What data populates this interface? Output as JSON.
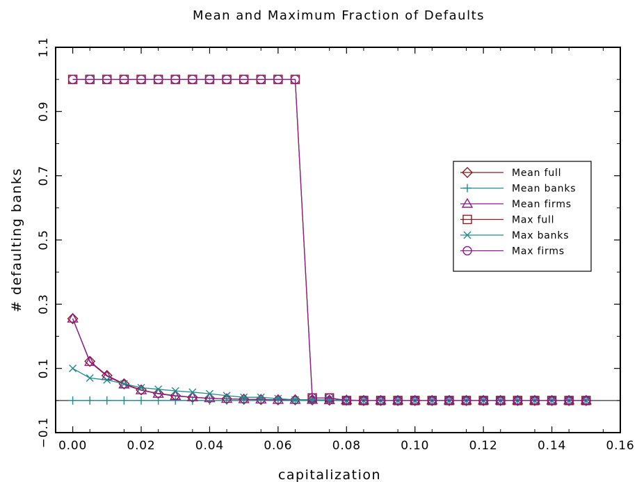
{
  "chart_data": {
    "type": "line",
    "title": "Mean and Maximum Fraction of Defaults",
    "xlabel": "capitalization",
    "ylabel": "# defaulting banks",
    "xlim": [
      -0.005,
      0.16
    ],
    "ylim": [
      -0.1,
      1.1
    ],
    "xticks": [
      0.0,
      0.02,
      0.04,
      0.06,
      0.08,
      0.1,
      0.12,
      0.14,
      0.16
    ],
    "xtick_labels": [
      "0.00",
      "0.02",
      "0.04",
      "0.06",
      "0.08",
      "0.10",
      "0.12",
      "0.14",
      "0.16"
    ],
    "yticks": [
      -0.1,
      0.1,
      0.3,
      0.5,
      0.7,
      0.9,
      1.1
    ],
    "ytick_labels": [
      "−0.1",
      "0.1",
      "0.3",
      "0.5",
      "0.7",
      "0.9",
      "1.1"
    ],
    "grid": false,
    "zero_line": true,
    "legend_position": "right",
    "x": [
      0.0,
      0.005,
      0.01,
      0.015,
      0.02,
      0.025,
      0.03,
      0.035,
      0.04,
      0.045,
      0.05,
      0.055,
      0.06,
      0.065,
      0.07,
      0.075,
      0.08,
      0.085,
      0.09,
      0.095,
      0.1,
      0.105,
      0.11,
      0.115,
      0.12,
      0.125,
      0.13,
      0.135,
      0.14,
      0.145,
      0.15
    ],
    "series": [
      {
        "name": "Mean full",
        "color": "#8b1a1a",
        "marker": "diamond",
        "values": [
          0.255,
          0.122,
          0.078,
          0.052,
          0.033,
          0.022,
          0.015,
          0.01,
          0.007,
          0.005,
          0.004,
          0.003,
          0.002,
          0.002,
          0.002,
          0.001,
          0.001,
          0.0,
          0.0,
          0.0,
          0.0,
          0.0,
          0.0,
          0.0,
          0.0,
          0.0,
          0.0,
          0.0,
          0.0,
          0.0,
          0.0
        ]
      },
      {
        "name": "Mean banks",
        "color": "#1f8a8a",
        "marker": "plus",
        "values": [
          0.0,
          0.0,
          0.0,
          0.0,
          0.0,
          0.0,
          0.0,
          0.0,
          0.0,
          0.0,
          0.0,
          0.0,
          0.0,
          0.0,
          0.0,
          0.0,
          0.0,
          0.0,
          0.0,
          0.0,
          0.0,
          0.0,
          0.0,
          0.0,
          0.0,
          0.0,
          0.0,
          0.0,
          0.0,
          0.0,
          0.0
        ]
      },
      {
        "name": "Mean firms",
        "color": "#8b1a8b",
        "marker": "triangle",
        "values": [
          0.255,
          0.12,
          0.076,
          0.05,
          0.032,
          0.021,
          0.014,
          0.01,
          0.007,
          0.005,
          0.004,
          0.003,
          0.002,
          0.002,
          0.002,
          0.001,
          0.001,
          0.0,
          0.0,
          0.0,
          0.0,
          0.0,
          0.0,
          0.0,
          0.0,
          0.0,
          0.0,
          0.0,
          0.0,
          0.0,
          0.0
        ]
      },
      {
        "name": "Max full",
        "color": "#8b1a1a",
        "marker": "square",
        "values": [
          1.0,
          1.0,
          1.0,
          1.0,
          1.0,
          1.0,
          1.0,
          1.0,
          1.0,
          1.0,
          1.0,
          1.0,
          1.0,
          1.0,
          0.008,
          0.008,
          0.0,
          0.0,
          0.0,
          0.0,
          0.0,
          0.0,
          0.0,
          0.0,
          0.0,
          0.0,
          0.0,
          0.0,
          0.0,
          0.0,
          0.0
        ]
      },
      {
        "name": "Max banks",
        "color": "#1f8a8a",
        "marker": "x",
        "values": [
          0.1,
          0.07,
          0.064,
          0.052,
          0.04,
          0.035,
          0.03,
          0.026,
          0.021,
          0.015,
          0.01,
          0.01,
          0.006,
          0.002,
          0.002,
          0.002,
          0.0,
          0.0,
          0.0,
          0.0,
          0.0,
          0.0,
          0.0,
          0.0,
          0.0,
          0.0,
          0.0,
          0.0,
          0.0,
          0.0,
          0.0
        ]
      },
      {
        "name": "Max firms",
        "color": "#8b1a8b",
        "marker": "circle",
        "values": [
          1.0,
          1.0,
          1.0,
          1.0,
          1.0,
          1.0,
          1.0,
          1.0,
          1.0,
          1.0,
          1.0,
          1.0,
          1.0,
          1.0,
          0.008,
          0.008,
          0.0,
          0.0,
          0.0,
          0.0,
          0.0,
          0.0,
          0.0,
          0.0,
          0.0,
          0.0,
          0.0,
          0.0,
          0.0,
          0.0,
          0.0
        ]
      }
    ]
  }
}
